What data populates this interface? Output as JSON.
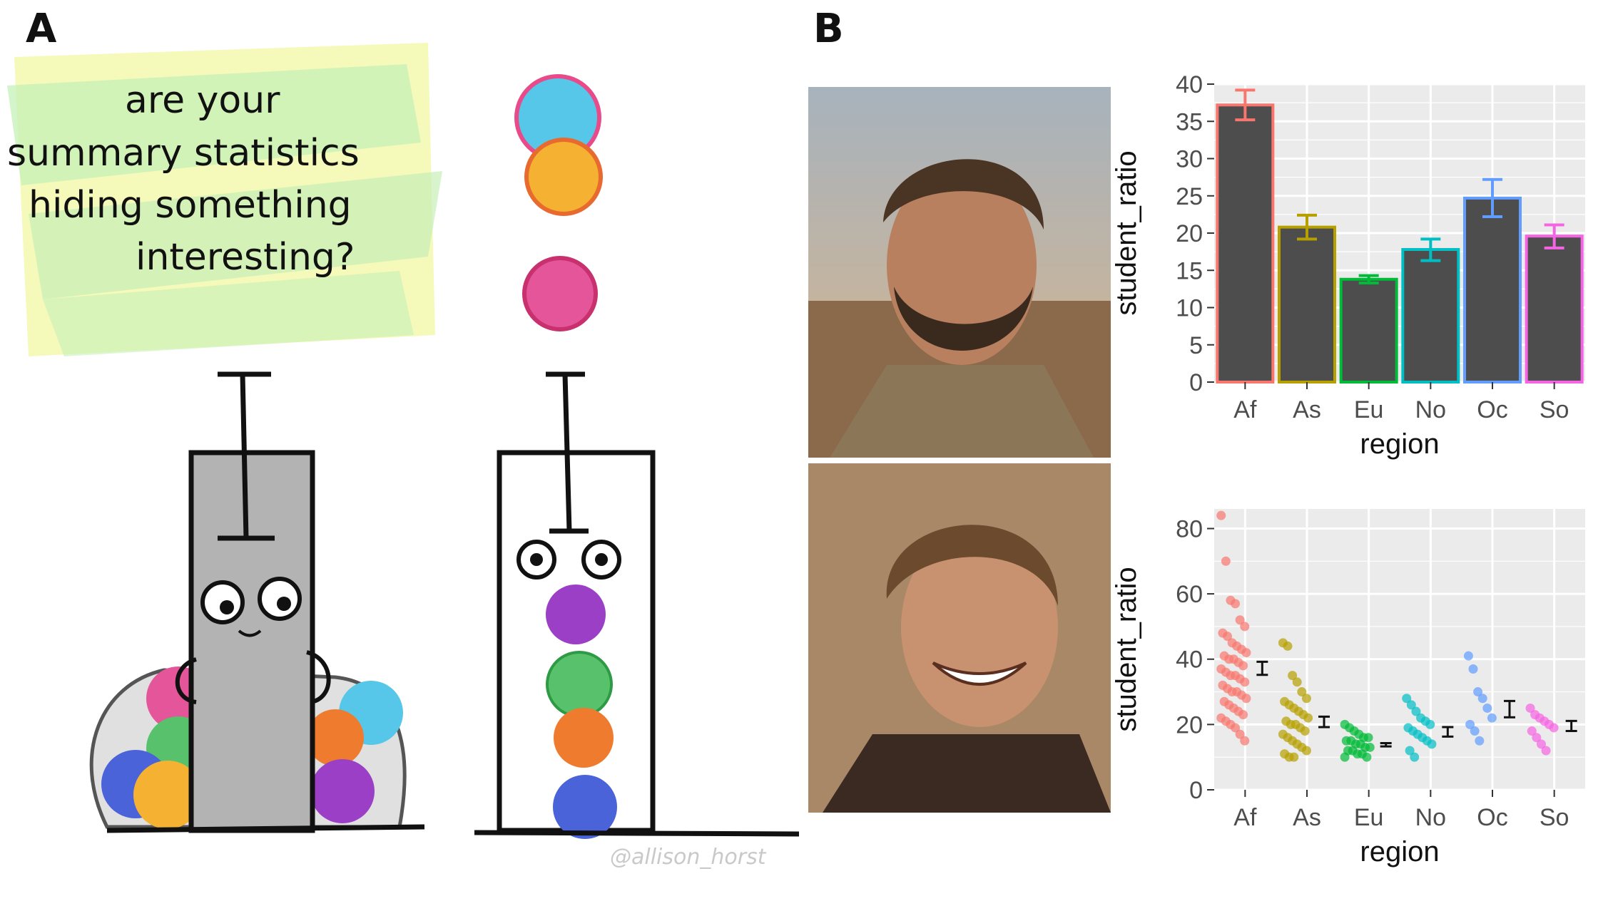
{
  "panels": {
    "left_letter": "A",
    "right_letter": "B"
  },
  "illustration": {
    "caption_lines": [
      "are your",
      "summary statistics",
      "hiding something",
      "interesting?"
    ],
    "credit": "@allison_horst"
  },
  "photos": {
    "top_alt": "man with beard, serious face",
    "bottom_alt": "man smiling"
  },
  "colors": {
    "Af": "#F8766D",
    "As": "#B79F00",
    "Eu": "#00BA38",
    "No": "#00BFC4",
    "Oc": "#619CFF",
    "So": "#F564E3",
    "panel_bg": "#EBEBEB",
    "bar_fill": "#4D4D4D"
  },
  "chart_data": [
    {
      "type": "bar",
      "categories": [
        "Af",
        "As",
        "Eu",
        "No",
        "Oc",
        "So"
      ],
      "values": [
        37.2,
        20.8,
        13.8,
        17.8,
        24.7,
        19.6
      ],
      "error_low": [
        35.2,
        19.2,
        13.3,
        16.3,
        22.2,
        18.0
      ],
      "error_high": [
        39.2,
        22.4,
        14.3,
        19.2,
        27.2,
        21.1
      ],
      "xlabel": "region",
      "ylabel": "student_ratio",
      "ylim": [
        0,
        40
      ],
      "yticks": [
        0,
        5,
        10,
        15,
        20,
        25,
        30,
        35,
        40
      ],
      "grid": true
    },
    {
      "type": "scatter",
      "categories": [
        "Af",
        "As",
        "Eu",
        "No",
        "Oc",
        "So"
      ],
      "means": [
        37.2,
        20.8,
        13.8,
        17.8,
        24.7,
        19.6
      ],
      "error_low": [
        35.2,
        19.2,
        13.3,
        16.3,
        22.2,
        18.0
      ],
      "error_high": [
        39.2,
        22.4,
        14.3,
        19.2,
        27.2,
        21.1
      ],
      "points": {
        "Af": [
          84,
          70,
          58,
          57,
          52,
          50,
          48,
          47,
          45,
          44,
          43,
          42,
          41,
          40,
          40,
          39,
          38,
          37,
          36,
          35,
          35,
          34,
          33,
          32,
          31,
          30,
          30,
          29,
          28,
          27,
          26,
          25,
          24,
          23,
          22,
          21,
          20,
          19,
          17,
          15
        ],
        "As": [
          45,
          44,
          35,
          33,
          30,
          28,
          27,
          26,
          25,
          24,
          23,
          22,
          21,
          20,
          20,
          19,
          18,
          17,
          16,
          15,
          14,
          13,
          12,
          11,
          10,
          10
        ],
        "Eu": [
          20,
          19,
          18,
          17,
          16,
          16,
          15,
          15,
          14,
          14,
          13,
          13,
          12,
          12,
          11,
          11,
          10,
          10
        ],
        "No": [
          28,
          26,
          24,
          22,
          21,
          20,
          19,
          18,
          17,
          16,
          15,
          14,
          12,
          10
        ],
        "Oc": [
          41,
          37,
          30,
          28,
          25,
          22,
          20,
          18,
          15
        ],
        "So": [
          25,
          23,
          22,
          21,
          20,
          19,
          18,
          16,
          14,
          12
        ]
      },
      "xlabel": "region",
      "ylabel": "student_ratio",
      "ylim": [
        0,
        86
      ],
      "yticks": [
        0,
        20,
        40,
        60,
        80
      ],
      "grid": true
    }
  ]
}
